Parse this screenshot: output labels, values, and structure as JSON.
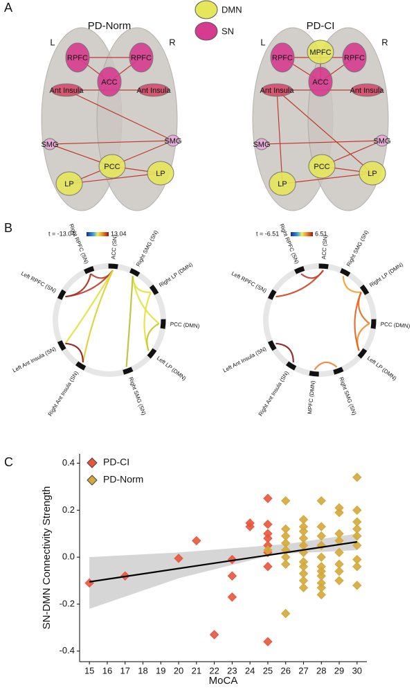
{
  "panel_a": {
    "label": "A",
    "legend": [
      "DMN",
      "SN"
    ],
    "brains": [
      {
        "title": "PD-Norm",
        "left": "L",
        "right": "R",
        "nodes": [
          "RPFC",
          "RPFC",
          "ACC",
          "Ant Insula",
          "Ant Insula",
          "SMG",
          "SMG",
          "PCC",
          "LP",
          "LP"
        ]
      },
      {
        "title": "PD-CI",
        "left": "L",
        "right": "R",
        "nodes": [
          "MPFC",
          "RPFC",
          "RPFC",
          "ACC",
          "Ant Insula",
          "Ant Insula",
          "SMG",
          "SMG",
          "PCC",
          "LP",
          "LP"
        ]
      }
    ]
  },
  "panel_b": {
    "label": "B",
    "circles": [
      {
        "scale_min": "t = -13.04",
        "scale_max": "13.04",
        "nodes": [
          "Right RPFC (SN)",
          "ACC (SN)",
          "Left RPFC (SN)",
          "Left Ant Insula (SN)",
          "Right Ant Insula (SN)",
          "Right SMG (SN)",
          "Right LP (DMN)",
          "PCC (DMN)",
          "Left LP (DMN)",
          "Right SMG (SN)"
        ]
      },
      {
        "scale_min": "t = -6.51",
        "scale_max": "6.51",
        "nodes": [
          "Right RPFC (SN)",
          "ACC (SN)",
          "Left RPFC (SN)",
          "Left Ant Insula (SN)",
          "Right Ant Insula (SN)",
          "Right SMG (SN)",
          "Right LP (DMN)",
          "PCC (DMN)",
          "Left LP (DMN)",
          "Right SMG (SN)",
          "MPFC (DMN)"
        ]
      }
    ]
  },
  "chart_data": {
    "type": "scatter",
    "label": "C",
    "xlabel": "MoCA",
    "ylabel": "SN-DMN Connectivity Strength",
    "xlim": [
      14.45,
      30.55
    ],
    "ylim": [
      -0.445,
      0.44
    ],
    "xticks": [
      15,
      16,
      17,
      18,
      19,
      20,
      21,
      22,
      23,
      24,
      25,
      26,
      27,
      28,
      29,
      30
    ],
    "yticks": [
      -0.4,
      -0.2,
      {
        "value": 0,
        "label": "0.0"
      },
      0.2,
      0.4
    ],
    "series": [
      {
        "name": "PD-CI",
        "color": "#e8553a",
        "x": [
          15,
          17,
          20,
          21,
          22,
          23,
          23,
          23,
          24,
          24,
          25,
          25,
          25,
          25,
          25,
          25,
          25,
          25
        ],
        "values": [
          -0.11,
          -0.08,
          -0.005,
          0.07,
          -0.33,
          -0.01,
          -0.08,
          -0.17,
          0.145,
          0.13,
          0.25,
          0.14,
          0.1,
          0.08,
          0.05,
          0.02,
          -0.04,
          -0.36
        ]
      },
      {
        "name": "PD-Norm",
        "color": "#d4a83a",
        "x": [
          25,
          26,
          26,
          26,
          26,
          26,
          26,
          26,
          26,
          27,
          27,
          27,
          27,
          27,
          27,
          27,
          27,
          27,
          27,
          27,
          28,
          28,
          28,
          28,
          28,
          28,
          28,
          28,
          28,
          28,
          28,
          29,
          29,
          29,
          29,
          29,
          29,
          29,
          29,
          30,
          30,
          30,
          30,
          30,
          30,
          30,
          30,
          30
        ],
        "values": [
          0.03,
          0.24,
          0.12,
          0.09,
          0.06,
          0.03,
          0.0,
          -0.03,
          -0.24,
          0.16,
          0.13,
          0.11,
          0.08,
          0.05,
          0.02,
          -0.02,
          -0.04,
          -0.07,
          -0.1,
          -0.13,
          0.24,
          0.13,
          0.09,
          0.05,
          0.0,
          -0.04,
          -0.06,
          -0.08,
          -0.11,
          -0.13,
          -0.16,
          0.21,
          0.19,
          0.1,
          0.07,
          0.02,
          -0.03,
          -0.06,
          -0.1,
          0.34,
          0.2,
          0.15,
          0.12,
          0.09,
          0.05,
          -0.01,
          -0.04,
          -0.12
        ]
      }
    ],
    "fit": {
      "x": [
        15,
        30
      ],
      "values": [
        -0.105,
        0.065
      ]
    },
    "band": {
      "x": [
        15,
        20,
        25,
        26,
        30
      ],
      "lower": [
        -0.22,
        -0.09,
        0.005,
        0.015,
        0.03
      ],
      "upper": [
        0.0,
        0.02,
        0.05,
        0.055,
        0.1
      ]
    },
    "legend": "upper left"
  }
}
